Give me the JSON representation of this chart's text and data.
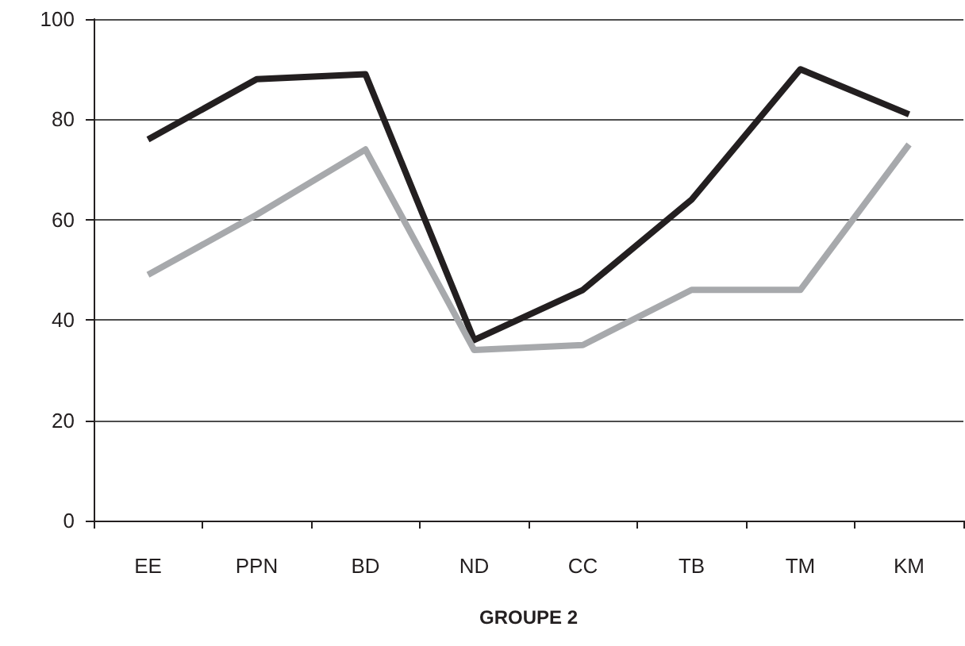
{
  "chart_data": {
    "type": "line",
    "xlabel": "GROUPE 2",
    "categories": [
      "EE",
      "PPN",
      "BD",
      "ND",
      "CC",
      "TB",
      "TM",
      "KM"
    ],
    "series": [
      {
        "color": "#231f20",
        "values": [
          76,
          88,
          89,
          36,
          46,
          64,
          90,
          81
        ]
      },
      {
        "color": "#a7a9ac",
        "values": [
          49,
          61,
          74,
          34,
          35,
          46,
          46,
          75
        ]
      }
    ],
    "ylim": [
      0,
      100
    ],
    "yticks": [
      0,
      20,
      40,
      60,
      80,
      100
    ],
    "grid": "y",
    "marker": "none",
    "line_style": "solid"
  }
}
